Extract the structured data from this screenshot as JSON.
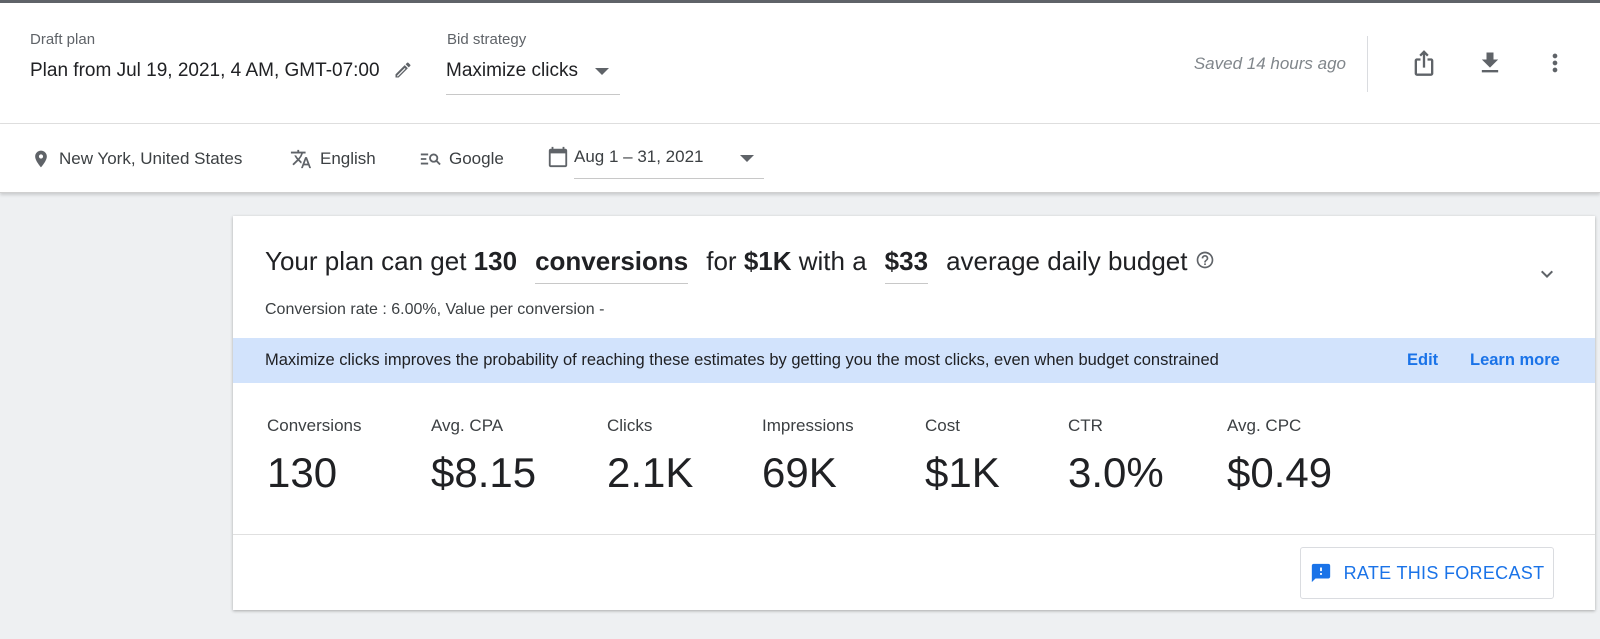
{
  "header": {
    "draft_label": "Draft plan",
    "draft_value": "Plan from Jul 19, 2021, 4 AM, GMT-07:00",
    "bid_label": "Bid strategy",
    "bid_value": "Maximize clicks",
    "saved_status": "Saved 14 hours ago",
    "actions": [
      "share-icon",
      "download-icon",
      "more-vert-icon"
    ]
  },
  "filters": {
    "location": "New York, United States",
    "language": "English",
    "network": "Google",
    "date_range": "Aug 1 – 31, 2021"
  },
  "summary": {
    "prefix": "Your plan can get",
    "count": "130",
    "metric": "conversions",
    "for_word": "for",
    "cost": "$1K",
    "with_word": "with a",
    "budget": "$33",
    "suffix": "average daily budget",
    "subtext": "Conversion rate : 6.00%, Value per conversion -"
  },
  "banner": {
    "text": "Maximize clicks improves the probability of reaching these estimates by getting you the most clicks, even when budget constrained",
    "edit": "Edit",
    "learn_more": "Learn more"
  },
  "metrics": [
    {
      "label": "Conversions",
      "value": "130"
    },
    {
      "label": "Avg. CPA",
      "value": "$8.15"
    },
    {
      "label": "Clicks",
      "value": "2.1K"
    },
    {
      "label": "Impressions",
      "value": "69K"
    },
    {
      "label": "Cost",
      "value": "$1K"
    },
    {
      "label": "CTR",
      "value": "3.0%"
    },
    {
      "label": "Avg. CPC",
      "value": "$0.49"
    }
  ],
  "rate_button": "RATE THIS FORECAST",
  "colors": {
    "accent": "#1a73e8",
    "banner_bg": "#d2e3fc",
    "page_bg": "#eef0f2"
  }
}
